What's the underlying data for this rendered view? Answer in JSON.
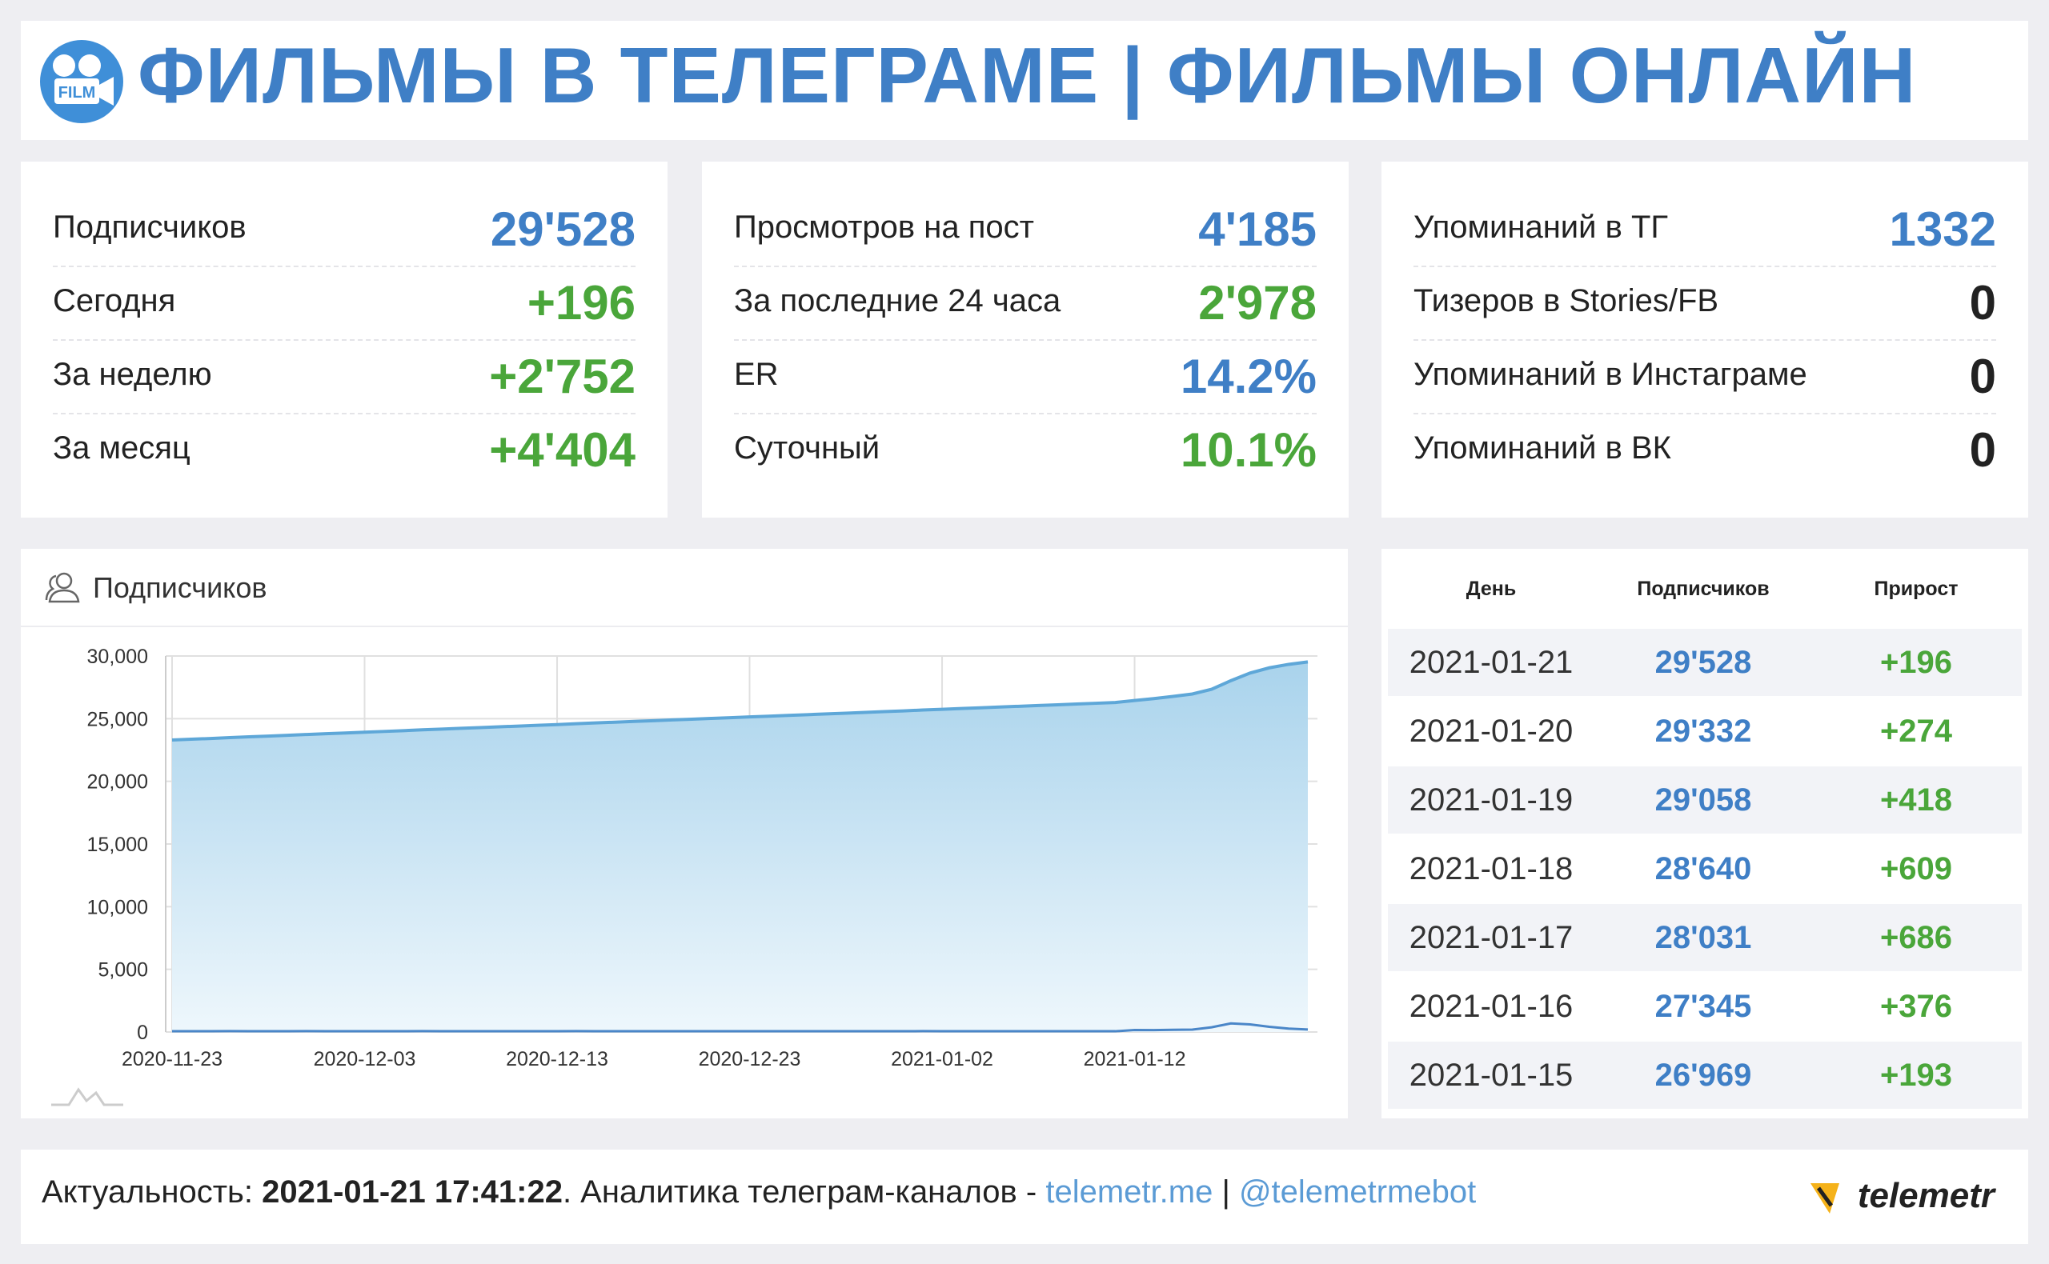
{
  "header": {
    "icon_text": "FILM",
    "title": "ФИЛЬМЫ В ТЕЛЕГРАМЕ | ФИЛЬМЫ ОНЛАЙН"
  },
  "stats": [
    {
      "rows": [
        {
          "label": "Подписчиков",
          "value": "29'528",
          "color": "#3f7fc6"
        },
        {
          "label": "Сегодня",
          "value": "+196",
          "color": "#4aa63a"
        },
        {
          "label": "За неделю",
          "value": "+2'752",
          "color": "#4aa63a"
        },
        {
          "label": "За месяц",
          "value": "+4'404",
          "color": "#4aa63a"
        }
      ]
    },
    {
      "rows": [
        {
          "label": "Просмотров на пост",
          "value": "4'185",
          "color": "#3f7fc6"
        },
        {
          "label": "За последние 24 часа",
          "value": "2'978",
          "color": "#4aa63a"
        },
        {
          "label": "ER",
          "value": "14.2%",
          "color": "#3f7fc6"
        },
        {
          "label": "Суточный",
          "value": "10.1%",
          "color": "#4aa63a"
        }
      ]
    },
    {
      "rows": [
        {
          "label": "Упоминаний в ТГ",
          "value": "1332",
          "color": "#3f7fc6"
        },
        {
          "label": "Тизеров в Stories/FB",
          "value": "0",
          "color": "#222222"
        },
        {
          "label": "Упоминаний в Инстаграме",
          "value": "0",
          "color": "#222222"
        },
        {
          "label": "Упоминаний в ВК",
          "value": "0",
          "color": "#222222"
        }
      ]
    }
  ],
  "chart_data": {
    "type": "area",
    "title": "Подписчиков",
    "x": [
      "2020-11-23",
      "2020-11-24",
      "2020-11-25",
      "2020-11-26",
      "2020-11-27",
      "2020-11-28",
      "2020-11-29",
      "2020-11-30",
      "2020-12-01",
      "2020-12-02",
      "2020-12-03",
      "2020-12-04",
      "2020-12-05",
      "2020-12-06",
      "2020-12-07",
      "2020-12-08",
      "2020-12-09",
      "2020-12-10",
      "2020-12-11",
      "2020-12-12",
      "2020-12-13",
      "2020-12-14",
      "2020-12-15",
      "2020-12-16",
      "2020-12-17",
      "2020-12-18",
      "2020-12-19",
      "2020-12-20",
      "2020-12-21",
      "2020-12-22",
      "2020-12-23",
      "2020-12-24",
      "2020-12-25",
      "2020-12-26",
      "2020-12-27",
      "2020-12-28",
      "2020-12-29",
      "2020-12-30",
      "2020-12-31",
      "2021-01-01",
      "2021-01-02",
      "2021-01-03",
      "2021-01-04",
      "2021-01-05",
      "2021-01-06",
      "2021-01-07",
      "2021-01-08",
      "2021-01-09",
      "2021-01-10",
      "2021-01-11",
      "2021-01-12",
      "2021-01-13",
      "2021-01-14",
      "2021-01-15",
      "2021-01-16",
      "2021-01-17",
      "2021-01-18",
      "2021-01-19",
      "2021-01-20",
      "2021-01-21"
    ],
    "series": [
      {
        "color": "#5ea7d8",
        "values": [
          23300,
          23360,
          23420,
          23490,
          23550,
          23610,
          23670,
          23740,
          23800,
          23860,
          23920,
          23980,
          24040,
          24110,
          24170,
          24230,
          24290,
          24350,
          24410,
          24470,
          24530,
          24600,
          24660,
          24720,
          24780,
          24840,
          24900,
          24960,
          25020,
          25080,
          25140,
          25200,
          25260,
          25320,
          25380,
          25440,
          25500,
          25560,
          25620,
          25690,
          25750,
          25810,
          25870,
          25930,
          25990,
          26050,
          26110,
          26170,
          26230,
          26290,
          26450,
          26600,
          26776,
          26969,
          27345,
          28031,
          28640,
          29058,
          29332,
          29528
        ]
      },
      {
        "color": "#4a86c8",
        "values": [
          60,
          60,
          60,
          70,
          60,
          60,
          60,
          70,
          60,
          60,
          60,
          60,
          60,
          70,
          60,
          60,
          60,
          60,
          60,
          60,
          60,
          70,
          60,
          60,
          60,
          60,
          60,
          60,
          60,
          60,
          60,
          60,
          60,
          60,
          60,
          60,
          60,
          60,
          60,
          70,
          60,
          60,
          60,
          60,
          60,
          60,
          60,
          60,
          60,
          60,
          160,
          150,
          176,
          193,
          376,
          686,
          609,
          418,
          274,
          196
        ]
      }
    ],
    "ylim": [
      0,
      30000
    ],
    "yticks": [
      0,
      {
        "value": 5000,
        "label": "5,000"
      },
      {
        "value": 10000,
        "label": "10,000"
      },
      {
        "value": 15000,
        "label": "15,000"
      },
      {
        "value": 20000,
        "label": "20,000"
      },
      {
        "value": 25000,
        "label": "25,000"
      },
      {
        "value": 30000,
        "label": "30,000"
      }
    ],
    "xticks": [
      "2020-11-23",
      "2020-12-03",
      "2020-12-13",
      "2020-12-23",
      "2021-01-02",
      "2021-01-12"
    ],
    "grid": true
  },
  "table": {
    "columns": [
      "День",
      "Подписчиков",
      "Прирост"
    ],
    "rows": [
      [
        "2021-01-21",
        "29'528",
        "+196"
      ],
      [
        "2021-01-20",
        "29'332",
        "+274"
      ],
      [
        "2021-01-19",
        "29'058",
        "+418"
      ],
      [
        "2021-01-18",
        "28'640",
        "+609"
      ],
      [
        "2021-01-17",
        "28'031",
        "+686"
      ],
      [
        "2021-01-16",
        "27'345",
        "+376"
      ],
      [
        "2021-01-15",
        "26'969",
        "+193"
      ]
    ]
  },
  "footer": {
    "prefix": "Актуальность: ",
    "timestamp": "2021-01-21 17:41:22",
    "middle": ". Аналитика телеграм-каналов - ",
    "link1": "telemetr.me",
    "separator": " | ",
    "link2": "@telemetrmebot",
    "logo": "telemetr"
  }
}
